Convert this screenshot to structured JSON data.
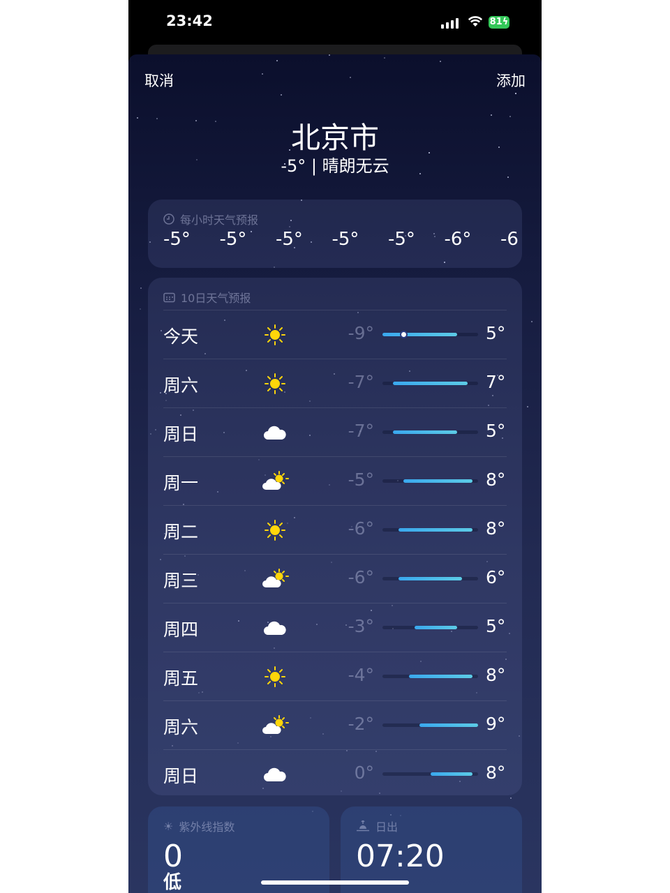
{
  "status_bar": {
    "time": "23:42",
    "battery": "81",
    "charging": true
  },
  "nav": {
    "cancel": "取消",
    "add": "添加"
  },
  "location": {
    "city": "北京市",
    "summary": "-5° | 晴朗无云"
  },
  "hourly": {
    "title": "每小时天气预报",
    "icon": "clock-icon",
    "temps": [
      "-5°",
      "-5°",
      "-5°",
      "-5°",
      "-5°",
      "-6°",
      "-6"
    ]
  },
  "daily": {
    "title": "10日天气预报",
    "icon": "calendar-icon",
    "range_min": -9,
    "range_max": 9,
    "current_temp": -5,
    "days": [
      {
        "day": "今天",
        "icon": "sun",
        "low": "-9°",
        "high": "5°",
        "low_v": -9,
        "high_v": 5
      },
      {
        "day": "周六",
        "icon": "sun",
        "low": "-7°",
        "high": "7°",
        "low_v": -7,
        "high_v": 7
      },
      {
        "day": "周日",
        "icon": "cloud",
        "low": "-7°",
        "high": "5°",
        "low_v": -7,
        "high_v": 5
      },
      {
        "day": "周一",
        "icon": "partly-cloudy",
        "low": "-5°",
        "high": "8°",
        "low_v": -5,
        "high_v": 8
      },
      {
        "day": "周二",
        "icon": "sun",
        "low": "-6°",
        "high": "8°",
        "low_v": -6,
        "high_v": 8
      },
      {
        "day": "周三",
        "icon": "partly-cloudy",
        "low": "-6°",
        "high": "6°",
        "low_v": -6,
        "high_v": 6
      },
      {
        "day": "周四",
        "icon": "cloud",
        "low": "-3°",
        "high": "5°",
        "low_v": -3,
        "high_v": 5
      },
      {
        "day": "周五",
        "icon": "sun",
        "low": "-4°",
        "high": "8°",
        "low_v": -4,
        "high_v": 8
      },
      {
        "day": "周六",
        "icon": "partly-cloudy",
        "low": "-2°",
        "high": "9°",
        "low_v": -2,
        "high_v": 9
      },
      {
        "day": "周日",
        "icon": "cloud",
        "low": "0°",
        "high": "8°",
        "low_v": 0,
        "high_v": 8
      }
    ]
  },
  "uv": {
    "title": "紫外线指数",
    "value": "0",
    "level": "低"
  },
  "sunrise": {
    "title": "日出",
    "value": "07:20"
  },
  "colors": {
    "sun": "#ffd60a",
    "bar_start": "#3aa8ee",
    "bar_end": "#5ccbe6",
    "battery": "#34c759"
  }
}
